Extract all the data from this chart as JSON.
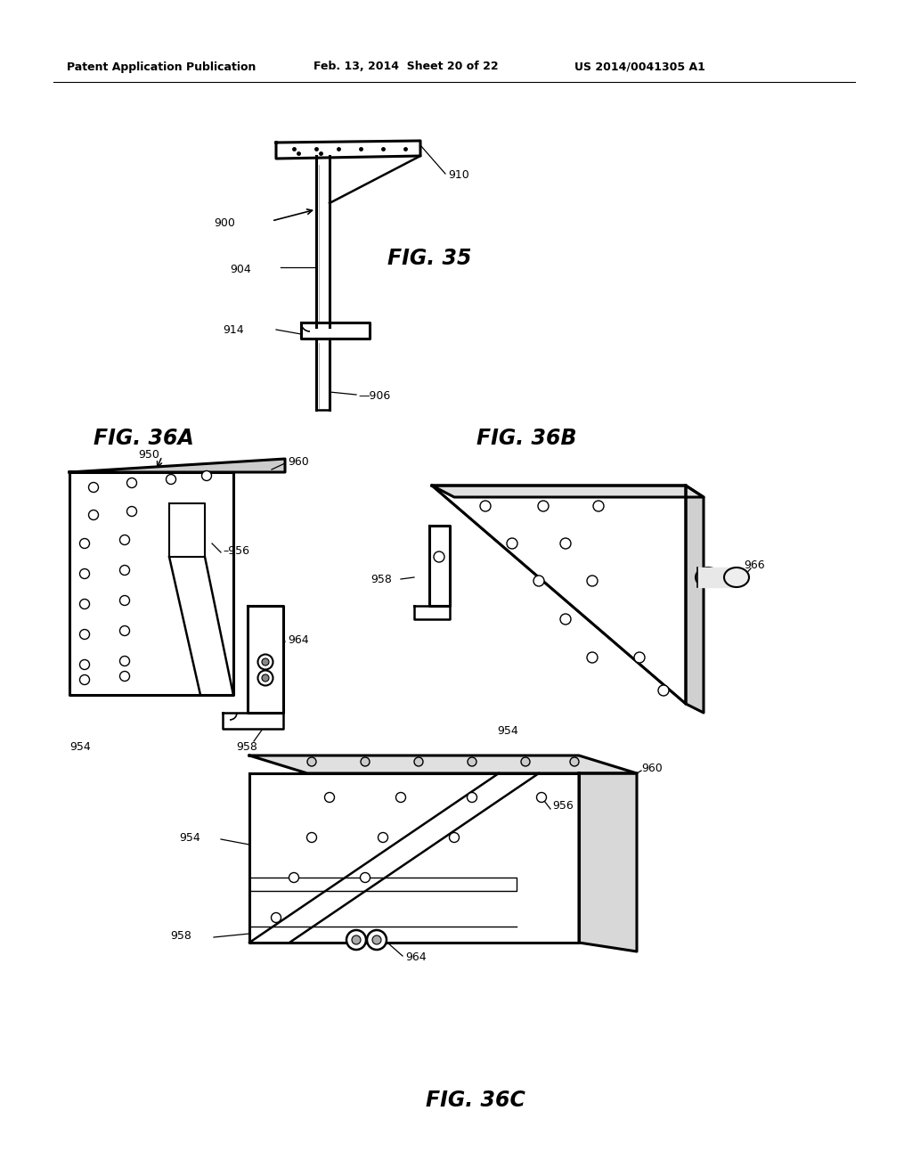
{
  "bg_color": "#ffffff",
  "header_left": "Patent Application Publication",
  "header_mid": "Feb. 13, 2014  Sheet 20 of 22",
  "header_right": "US 2014/0041305 A1",
  "fig35_label": "FIG. 35",
  "fig36a_label": "FIG. 36A",
  "fig36b_label": "FIG. 36B",
  "fig36c_label": "FIG. 36C",
  "line_color": "#000000",
  "fill_white": "#ffffff",
  "fill_light": "#e8e8e8"
}
